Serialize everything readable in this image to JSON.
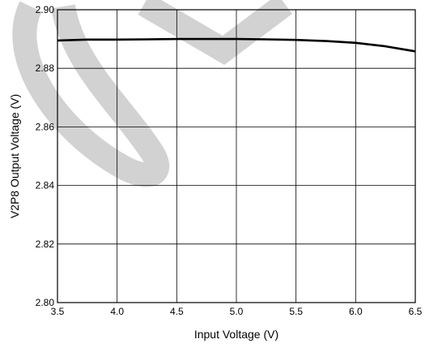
{
  "chart_data": {
    "type": "line",
    "title": "",
    "xlabel": "Input Voltage (V)",
    "ylabel": "V2P8 Output Voltage (V)",
    "xlim": [
      3.5,
      6.5
    ],
    "ylim": [
      2.8,
      2.9
    ],
    "xticks": [
      "3.5",
      "4.0",
      "4.5",
      "5.0",
      "5.5",
      "6.0",
      "6.5"
    ],
    "yticks": [
      "2.80",
      "2.82",
      "2.84",
      "2.86",
      "2.88",
      "2.90"
    ],
    "grid": true,
    "series": [
      {
        "x": [
          3.5,
          3.75,
          4.0,
          4.25,
          4.5,
          4.75,
          5.0,
          5.25,
          5.5,
          5.75,
          6.0,
          6.25,
          6.5
        ],
        "y": [
          2.8895,
          2.8898,
          2.8898,
          2.8899,
          2.89,
          2.89,
          2.89,
          2.8899,
          2.8897,
          2.8893,
          2.8887,
          2.8875,
          2.8858
        ],
        "color": "#000000"
      }
    ],
    "watermark": {
      "type": "decorative-shape",
      "color": "#d0d0d0"
    }
  }
}
